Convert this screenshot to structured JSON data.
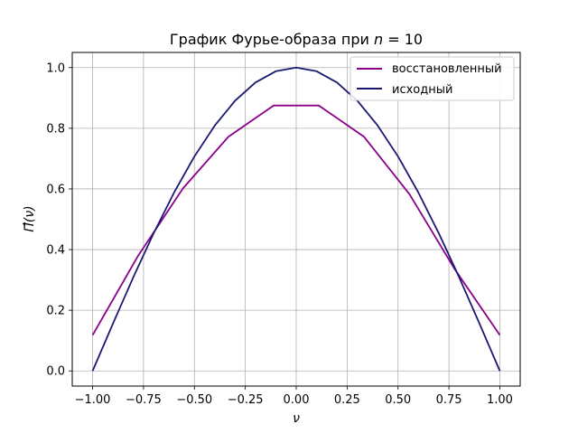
{
  "chart_data": {
    "type": "line",
    "title": "График Фурье-образа при n = 10",
    "title_parts": {
      "prefix": "График Фурье-образа при ",
      "var": "n",
      "suffix": " = 10"
    },
    "xlabel": "ν",
    "ylabel": "Π̂(ν)",
    "xlim": [
      -1.1,
      1.1
    ],
    "ylim": [
      -0.05,
      1.05
    ],
    "xticks": [
      -1.0,
      -0.75,
      -0.5,
      -0.25,
      0.0,
      0.25,
      0.5,
      0.75,
      1.0
    ],
    "xtick_labels": [
      "−1.00",
      "−0.75",
      "−0.50",
      "−0.25",
      "0.00",
      "0.25",
      "0.50",
      "0.75",
      "1.00"
    ],
    "yticks": [
      0.0,
      0.2,
      0.4,
      0.6,
      0.8,
      1.0
    ],
    "ytick_labels": [
      "0.0",
      "0.2",
      "0.4",
      "0.6",
      "0.8",
      "1.0"
    ],
    "grid": true,
    "legend_position": "top-right",
    "series": [
      {
        "name": "восстановленный",
        "color": "#8b008b",
        "x": [
          -1.0,
          -0.778,
          -0.556,
          -0.333,
          -0.111,
          0.111,
          0.333,
          0.556,
          0.778,
          1.0
        ],
        "y": [
          0.118,
          0.378,
          0.602,
          0.772,
          0.875,
          0.875,
          0.772,
          0.583,
          0.336,
          0.118
        ]
      },
      {
        "name": "исходный",
        "color": "#191970",
        "x": [
          -1.0,
          -0.9,
          -0.8,
          -0.7,
          -0.6,
          -0.5,
          -0.4,
          -0.3,
          -0.2,
          -0.1,
          0.0,
          0.1,
          0.2,
          0.3,
          0.4,
          0.5,
          0.6,
          0.7,
          0.8,
          0.9,
          1.0
        ],
        "y": [
          0.0,
          0.156,
          0.309,
          0.454,
          0.588,
          0.707,
          0.809,
          0.891,
          0.951,
          0.988,
          1.0,
          0.988,
          0.951,
          0.891,
          0.809,
          0.707,
          0.588,
          0.454,
          0.309,
          0.156,
          0.0
        ]
      }
    ]
  }
}
